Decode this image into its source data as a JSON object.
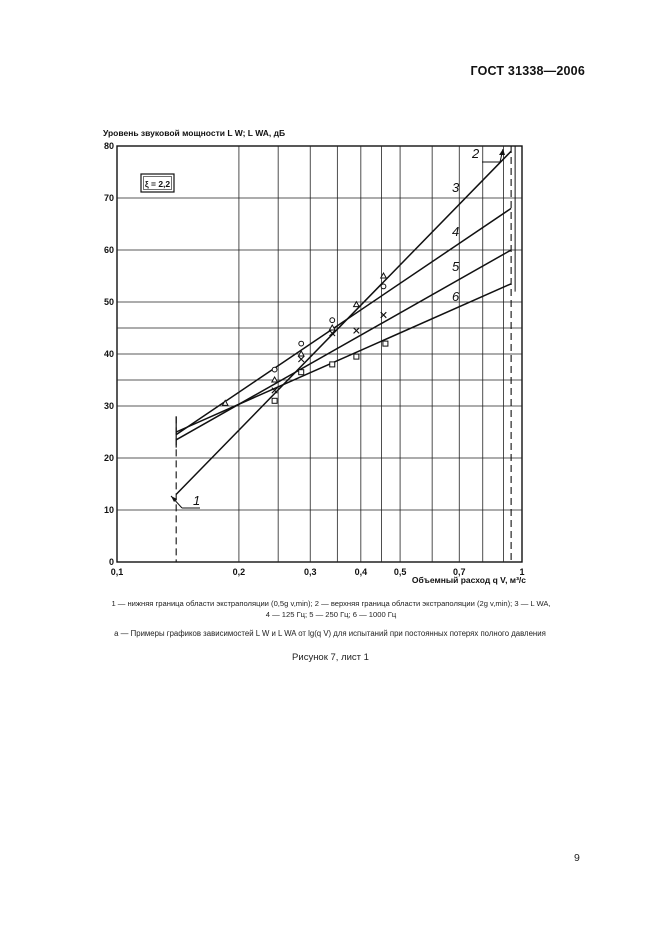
{
  "header": {
    "doc_id": "ГОСТ 31338—2006"
  },
  "page_number": "9",
  "figure": {
    "caption_line1": "1 — нижняя граница области экстраполяции (0,5g v,min); 2 — верхняя граница области экстраполяции (2g v,min); 3 — L WA,",
    "caption_line2": "4 — 125 Гц; 5 — 250 Гц; 6 — 1000 Гц",
    "subcaption": "а — Примеры графиков зависимостей L W и L WA от lg(q V) для испытаний при постоянных потерях полного давления",
    "title": "Рисунок 7, лист 1"
  },
  "chart_data": {
    "type": "line",
    "title": "",
    "ylabel": "Уровень звуковой мощности L W; L WA, дБ",
    "xlabel": "Объемный расход q V, м³/с",
    "xscale": "log",
    "xlim": [
      0.1,
      1.0
    ],
    "ylim": [
      0,
      80
    ],
    "x_ticks": [
      {
        "value": 0.1,
        "label": "0,1"
      },
      {
        "value": 0.2,
        "label": "0,2"
      },
      {
        "value": 0.3,
        "label": "0,3"
      },
      {
        "value": 0.4,
        "label": "0,4"
      },
      {
        "value": 0.5,
        "label": "0,5"
      },
      {
        "value": 0.7,
        "label": "0,7"
      },
      {
        "value": 1.0,
        "label": "1"
      }
    ],
    "x_grid_extra": [
      0.25,
      0.35,
      0.45,
      0.6,
      0.8,
      0.9
    ],
    "y_ticks": [
      {
        "value": 0,
        "label": "0"
      },
      {
        "value": 10,
        "label": "10"
      },
      {
        "value": 20,
        "label": "20"
      },
      {
        "value": 30,
        "label": "30"
      },
      {
        "value": 40,
        "label": "40"
      },
      {
        "value": 50,
        "label": "50"
      },
      {
        "value": 60,
        "label": "60"
      },
      {
        "value": 70,
        "label": "70"
      },
      {
        "value": 80,
        "label": "80"
      }
    ],
    "y_grid_extra": [
      35,
      45
    ],
    "grid": true,
    "annotation_box": "ξ = 2,2",
    "boundaries": [
      {
        "name": "1",
        "x": 0.14,
        "ymin": 0,
        "ymax": 28
      },
      {
        "name": "2",
        "x": 0.94,
        "ymin": 0,
        "ymax": 80
      }
    ],
    "series": [
      {
        "name": "3",
        "x": [
          0.14,
          0.94
        ],
        "y": [
          13.0,
          79.0
        ]
      },
      {
        "name": "4",
        "x": [
          0.14,
          0.94
        ],
        "y": [
          24.5,
          68.0
        ]
      },
      {
        "name": "5",
        "x": [
          0.14,
          0.94
        ],
        "y": [
          23.5,
          60.0
        ]
      },
      {
        "name": "6",
        "x": [
          0.14,
          0.94
        ],
        "y": [
          25.0,
          53.5
        ]
      }
    ],
    "points": [
      {
        "marker": "circle",
        "x": [
          0.245,
          0.285,
          0.34,
          0.455
        ],
        "y": [
          37.0,
          42.0,
          46.5,
          53.0
        ]
      },
      {
        "marker": "triangle",
        "x": [
          0.185,
          0.245,
          0.285,
          0.34,
          0.39,
          0.455
        ],
        "y": [
          30.5,
          35.0,
          40.0,
          45.0,
          49.5,
          55.0
        ]
      },
      {
        "marker": "cross",
        "x": [
          0.245,
          0.285,
          0.34,
          0.39,
          0.455
        ],
        "y": [
          33.0,
          39.0,
          44.0,
          44.5,
          47.5
        ]
      },
      {
        "marker": "square",
        "x": [
          0.245,
          0.285,
          0.34,
          0.39,
          0.46
        ],
        "y": [
          31.0,
          36.5,
          38.0,
          39.5,
          42.0
        ]
      }
    ]
  }
}
